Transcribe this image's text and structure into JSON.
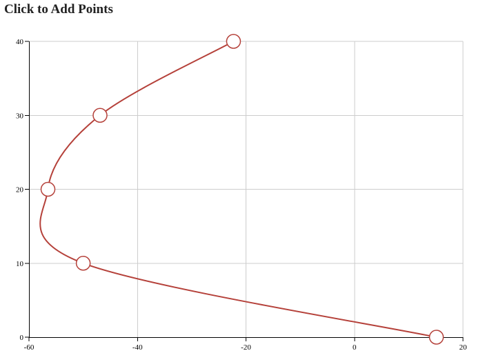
{
  "title": "Click to Add Points",
  "colors": {
    "curve": "#b5413a",
    "point_fill": "#ffffff",
    "grid": "#cccccc"
  },
  "chart_data": {
    "type": "line",
    "title": "",
    "xlabel": "",
    "ylabel": "",
    "xlim": [
      -60,
      20
    ],
    "ylim": [
      0,
      40
    ],
    "x_ticks": [
      -60,
      -40,
      -20,
      0,
      20
    ],
    "y_ticks": [
      0,
      10,
      20,
      30,
      40
    ],
    "grid": true,
    "curve": "cardinal-spline",
    "series": [
      {
        "points": [
          {
            "x": -22.3,
            "y": 40
          },
          {
            "x": -46.9,
            "y": 30
          },
          {
            "x": -56.5,
            "y": 20
          },
          {
            "x": -50.0,
            "y": 10
          },
          {
            "x": 15.1,
            "y": 0
          }
        ]
      }
    ]
  }
}
